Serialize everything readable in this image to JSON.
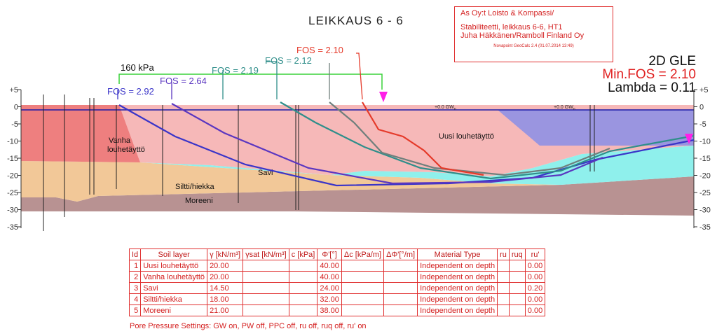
{
  "title": "LEIKKAUS 6 - 6",
  "info": {
    "company": "As Oy:t Loisto & Kompassi/",
    "line1": "Stabiliteetti, leikkaus 6-6, HT1",
    "line2": "Juha Häkkänen/Ramboll Finland Oy",
    "software": "Novapoint GeoCalc 2.4 (01.07.2014 13:49)"
  },
  "summary": {
    "method": "2D GLE",
    "min_fos": "Min.FOS = 2.10",
    "lambda": "Lambda = 0.11"
  },
  "load_label": "160 kPa",
  "fos_labels": [
    "FOS = 2.92",
    "FOS = 2.64",
    "FOS = 2.19",
    "FOS = 2.12",
    "FOS = 2.10"
  ],
  "layer_labels": {
    "vanha1": "Vanha",
    "vanha2": "louhetäyttö",
    "uusi": "Uusi louhetäyttö",
    "savi": "Savi",
    "siltti": "Siltti/hiekka",
    "moreeni": "Moreeni"
  },
  "groundwater_label": "+0.0 GW",
  "groundwater_sub": "n",
  "elevation_ticks": [
    "+5",
    "0",
    "-5",
    "-10",
    "-15",
    "-20",
    "-25",
    "-30",
    "-35"
  ],
  "colors": {
    "uusi": "#f6b8b8",
    "vanha": "#ee7f7f",
    "savi": "#8ff0ec",
    "siltti": "#f2c898",
    "moreeni": "#b89292",
    "water": "#8a8ee6",
    "fos_2_92": "#3a34c8",
    "fos_2_64": "#5a36c0",
    "fos_2_19": "#2f8e8a",
    "fos_2_12": "#6f7f7c",
    "fos_2_10": "#e53a2a",
    "load": "#3ad23a",
    "marker": "#ff20e8"
  },
  "table": {
    "headers": [
      "Id",
      "Soil layer",
      "γ [kN/m³]",
      "γsat [kN/m³]",
      "c [kPa]",
      "Φ'[°]",
      "Δc [kPa/m]",
      "ΔΦ'[°/m]",
      "Material Type",
      "ru",
      "ruq",
      "ru'"
    ],
    "rows": [
      [
        "1",
        "Uusi louhetäyttö",
        "20.00",
        "",
        "",
        "40.00",
        "",
        "",
        "Independent on depth",
        "",
        "",
        "0.00"
      ],
      [
        "2",
        "Vanha louhetäyttö",
        "20.00",
        "",
        "",
        "40.00",
        "",
        "",
        "Independent on depth",
        "",
        "",
        "0.00"
      ],
      [
        "3",
        "Savi",
        "14.50",
        "",
        "",
        "24.00",
        "",
        "",
        "Independent on depth",
        "",
        "",
        "0.20"
      ],
      [
        "4",
        "Siltti/hiekka",
        "18.00",
        "",
        "",
        "32.00",
        "",
        "",
        "Independent on depth",
        "",
        "",
        "0.00"
      ],
      [
        "5",
        "Moreeni",
        "21.00",
        "",
        "",
        "38.00",
        "",
        "",
        "Independent on depth",
        "",
        "",
        "0.00"
      ]
    ]
  },
  "pore_settings": "Pore Pressure Settings: GW on, PW off, PPC off, ru off, ruq off, ru' on"
}
